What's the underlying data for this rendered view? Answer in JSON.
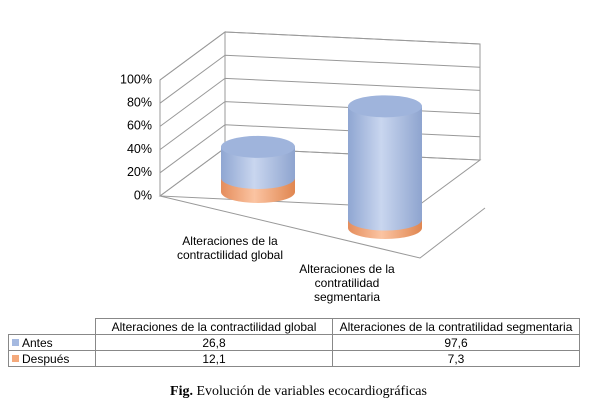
{
  "chart_data": {
    "type": "cylinder-stacked",
    "categories": [
      "Alteraciones de la contractilidad global",
      "Alteraciones de la contratilidad segmentaria"
    ],
    "series": [
      {
        "name": "Antes",
        "color": "#a5b9e0",
        "values": [
          26.8,
          97.6
        ],
        "value_labels": [
          "26,8",
          "97,6"
        ]
      },
      {
        "name": "Después",
        "color": "#f4a97b",
        "values": [
          12.1,
          7.3
        ],
        "value_labels": [
          "12,1",
          "7,3"
        ]
      }
    ],
    "ylim": [
      0,
      100
    ],
    "yticks": [
      {
        "value": 0,
        "label": "0%"
      },
      {
        "value": 20,
        "label": "20%"
      },
      {
        "value": 40,
        "label": "40%"
      },
      {
        "value": 60,
        "label": "60%"
      },
      {
        "value": 80,
        "label": "80%"
      },
      {
        "value": 100,
        "label": "100%"
      }
    ],
    "grid": true
  },
  "caption_label": "Fig.",
  "caption": "Evolución de variables ecocardiográficas"
}
